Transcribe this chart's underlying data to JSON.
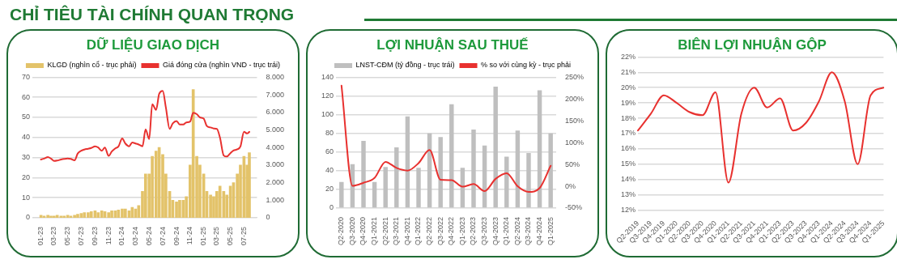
{
  "chart_data": [
    {
      "type": "other",
      "title": "CHỈ TIÊU TÀI CHÍNH QUAN TRỌNG"
    },
    {
      "type": "line",
      "title": "DỮ LIỆU GIAO DỊCH",
      "legend": "top",
      "grid": "y",
      "marker": "none",
      "x": [
        "2023-01-01",
        "2023-01-15",
        "2023-02-01",
        "2023-02-15",
        "2023-03-01",
        "2023-03-15",
        "2023-04-01",
        "2023-04-15",
        "2023-05-01",
        "2023-05-15",
        "2023-06-01",
        "2023-06-15",
        "2023-07-01",
        "2023-07-15",
        "2023-08-01",
        "2023-08-15",
        "2023-09-01",
        "2023-09-15",
        "2023-10-01",
        "2023-10-15",
        "2023-11-01",
        "2023-11-15",
        "2023-12-01",
        "2023-12-15",
        "2024-01-01",
        "2024-01-15",
        "2024-02-01",
        "2024-02-15",
        "2024-03-01",
        "2024-03-15",
        "2024-04-01",
        "2024-04-15",
        "2024-05-01",
        "2024-05-15",
        "2024-06-01",
        "2024-06-15",
        "2024-07-01",
        "2024-07-15",
        "2024-08-01",
        "2024-08-15",
        "2024-09-01",
        "2024-09-15",
        "2024-10-01",
        "2024-10-15",
        "2024-11-01",
        "2024-11-15",
        "2024-12-01",
        "2024-12-15",
        "2025-01-01",
        "2025-01-15",
        "2025-02-01",
        "2025-02-15",
        "2025-03-01",
        "2025-03-15",
        "2025-04-01",
        "2025-04-15",
        "2025-05-01",
        "2025-05-15",
        "2025-06-01",
        "2025-06-15",
        "2025-07-01",
        "2025-07-15",
        "2025-07-25"
      ],
      "xlim": [
        "2022-12-25",
        "2025-07-28"
      ],
      "xticks": [
        {
          "value": "2023-01-01",
          "label": "01-23"
        },
        {
          "value": "2023-03-01",
          "label": "03-23"
        },
        {
          "value": "2023-05-01",
          "label": "05-23"
        },
        {
          "value": "2023-07-01",
          "label": "07-23"
        },
        {
          "value": "2023-09-01",
          "label": "09-23"
        },
        {
          "value": "2023-11-01",
          "label": "11-23"
        },
        {
          "value": "2024-01-01",
          "label": "01-24"
        },
        {
          "value": "2024-03-01",
          "label": "03-24"
        },
        {
          "value": "2024-05-01",
          "label": "05-24"
        },
        {
          "value": "2024-07-01",
          "label": "07-24"
        },
        {
          "value": "2024-09-01",
          "label": "09-24"
        },
        {
          "value": "2024-11-01",
          "label": "11-24"
        },
        {
          "value": "2025-01-01",
          "label": "01-25"
        },
        {
          "value": "2025-03-01",
          "label": "03-25"
        },
        {
          "value": "2025-05-01",
          "label": "05-25"
        },
        {
          "value": "2025-07-01",
          "label": "07-25"
        }
      ],
      "ylim": [
        0,
        70
      ],
      "yticks": [
        0,
        10,
        20,
        30,
        40,
        50,
        60,
        70
      ],
      "y2lim": [
        0,
        8000
      ],
      "y2ticks": [
        0,
        {
          "value": 1000,
          "label": "1.000"
        },
        {
          "value": 2000,
          "label": "2.000"
        },
        {
          "value": 3000,
          "label": "3.000"
        },
        {
          "value": 4000,
          "label": "4.000"
        },
        {
          "value": 5000,
          "label": "5.000"
        },
        {
          "value": 6000,
          "label": "6.000"
        },
        {
          "value": 7000,
          "label": "7.000"
        },
        {
          "value": 8000,
          "label": "8.000"
        }
      ],
      "series": [
        {
          "name": "KLGD (nghìn cổ - trục phải)",
          "type": "bar",
          "axis": "y2",
          "color": "#e3c36a",
          "values": [
            150,
            100,
            150,
            100,
            100,
            150,
            100,
            100,
            150,
            100,
            150,
            200,
            250,
            300,
            300,
            350,
            400,
            300,
            400,
            350,
            300,
            400,
            400,
            450,
            500,
            500,
            400,
            600,
            500,
            700,
            1500,
            2500,
            2500,
            3500,
            3800,
            4000,
            3600,
            2500,
            1500,
            1000,
            900,
            1000,
            1000,
            1200,
            3000,
            7300,
            3500,
            3000,
            2500,
            1500,
            1300,
            1200,
            1500,
            1800,
            1500,
            1300,
            1800,
            2000,
            2500,
            3000,
            3500,
            3000,
            3700
          ]
        },
        {
          "name": "Giá đóng cửa (nghìn VND - trục trái)",
          "type": "line",
          "color": "#e8312f",
          "values": [
            29,
            29.5,
            30.2,
            29.5,
            28.3,
            28.5,
            29,
            29.3,
            29.5,
            29.3,
            28.6,
            32,
            33.4,
            34,
            34.4,
            34.8,
            35.6,
            35,
            33.4,
            35,
            30.8,
            33,
            34.6,
            35.5,
            39.5,
            37,
            35.6,
            37.5,
            37,
            36.5,
            35.6,
            44,
            39.2,
            56.6,
            53.7,
            61.7,
            63.2,
            55,
            44.3,
            47,
            48.2,
            46.5,
            46.5,
            47.5,
            47.9,
            52.3,
            51.6,
            50,
            49.4,
            45.7,
            45,
            44.5,
            44.3,
            40,
            31,
            30.5,
            32.2,
            33.5,
            34.1,
            35.5,
            42.8,
            42,
            42.8
          ]
        }
      ]
    },
    {
      "type": "bar",
      "title": "LỢI NHUẬN SAU THUẾ",
      "legend": "top",
      "grid": "y",
      "marker": "none",
      "categories": [
        "Q2-2020",
        "Q3-2020",
        "Q4-2020",
        "Q1-2021",
        "Q2-2021",
        "Q3-2021",
        "Q4-2021",
        "Q1-2022",
        "Q2-2022",
        "Q3-2022",
        "Q4-2022",
        "Q1-2023",
        "Q2-2023",
        "Q3-2023",
        "Q4-2023",
        "Q1-2024",
        "Q2-2024",
        "Q3-2024",
        "Q4-2024",
        "Q1-2025"
      ],
      "ylim": [
        0,
        140
      ],
      "yticks": [
        0,
        20,
        40,
        60,
        80,
        100,
        120,
        140
      ],
      "y2lim": [
        -50,
        250
      ],
      "y2ticks": [
        {
          "value": -50,
          "label": "-50%"
        },
        {
          "value": 0,
          "label": "0%"
        },
        {
          "value": 50,
          "label": "50%"
        },
        {
          "value": 100,
          "label": "100%"
        },
        {
          "value": 150,
          "label": "150%"
        },
        {
          "value": 200,
          "label": "200%"
        },
        {
          "value": 250,
          "label": "250%"
        }
      ],
      "series": [
        {
          "name": "LNST-CĐM (tỷ đồng - trục trái)",
          "color": "#bfbfbf",
          "values": [
            28,
            47,
            72,
            28,
            44,
            65,
            98,
            43,
            80,
            76,
            111,
            43,
            84,
            67,
            130,
            55,
            83,
            59,
            126,
            80
          ]
        },
        {
          "name": "% so với cùng kỳ - trục phải",
          "type": "line",
          "axis": "y2",
          "color": "#e8312f",
          "values": [
            231,
            1,
            8,
            19,
            56,
            42,
            36,
            53,
            83,
            15,
            14,
            -1,
            5,
            -11,
            17,
            30,
            0,
            -13,
            -4,
            47
          ]
        }
      ]
    },
    {
      "type": "line",
      "title": "BIÊN LỢI NHUẬN GỘP",
      "grid": "y",
      "marker": "none",
      "categories": [
        "Q2-2019",
        "Q3-2019",
        "Q4-2019",
        "Q1-2020",
        "Q2-2020",
        "Q3-2020",
        "Q4-2020",
        "Q1-2021",
        "Q2-2021",
        "Q3-2021",
        "Q4-2021",
        "Q1-2023",
        "Q2-2023",
        "Q3-2023",
        "Q4-2023",
        "Q1-2024",
        "Q2-2024",
        "Q3-2024",
        "Q4-2024",
        "Q1-2025"
      ],
      "ylim": [
        12,
        22
      ],
      "yticks": [
        {
          "value": 12,
          "label": "12%"
        },
        {
          "value": 13,
          "label": "13%"
        },
        {
          "value": 14,
          "label": "14%"
        },
        {
          "value": 15,
          "label": "15%"
        },
        {
          "value": 16,
          "label": "16%"
        },
        {
          "value": 17,
          "label": "17%"
        },
        {
          "value": 18,
          "label": "18%"
        },
        {
          "value": 19,
          "label": "19%"
        },
        {
          "value": 20,
          "label": "20%"
        },
        {
          "value": 21,
          "label": "21%"
        },
        {
          "value": 22,
          "label": "22%"
        }
      ],
      "series": [
        {
          "color": "#e8312f",
          "values": [
            17.2,
            18.3,
            19.5,
            19.0,
            18.4,
            18.2,
            19.7,
            13.8,
            18.3,
            20.0,
            18.7,
            19.3,
            17.2,
            17.7,
            19.1,
            21.0,
            19.1,
            15.0,
            19.5,
            20.0
          ]
        }
      ]
    }
  ]
}
